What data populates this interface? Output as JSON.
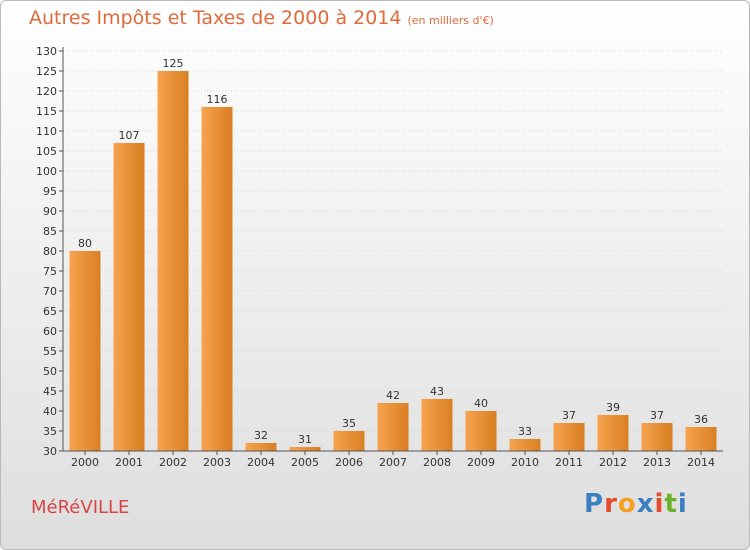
{
  "header": {
    "title": "Autres Impôts et Taxes de 2000 à 2014",
    "subtitle": "(en milliers d'€)"
  },
  "footer": {
    "commune": "MéRéVILLE",
    "brand_letters": [
      "P",
      "r",
      "o",
      "x",
      "i",
      "t",
      "i"
    ]
  },
  "colors": {
    "title": "#e06a3a",
    "commune": "#d94545",
    "bar_light": "#f7a34f",
    "bar_dark": "#d97f22",
    "brand": [
      "#3a7fc2",
      "#e64a2a",
      "#f5a020",
      "#3a7fc2",
      "#e64a2a",
      "#6ab42c",
      "#3a7fc2"
    ]
  },
  "chart_data": {
    "type": "bar",
    "categories": [
      "2000",
      "2001",
      "2002",
      "2003",
      "2004",
      "2005",
      "2006",
      "2007",
      "2008",
      "2009",
      "2010",
      "2011",
      "2012",
      "2013",
      "2014"
    ],
    "values": [
      80,
      107,
      125,
      116,
      32,
      31,
      35,
      42,
      43,
      40,
      33,
      37,
      39,
      37,
      36
    ],
    "title": "Autres Impôts et Taxes de 2000 à 2014",
    "subtitle": "(en milliers d'€)",
    "xlabel": "",
    "ylabel": "",
    "ylim": [
      30,
      130
    ],
    "yticks": [
      30,
      35,
      40,
      45,
      50,
      55,
      60,
      65,
      70,
      75,
      80,
      85,
      90,
      95,
      100,
      105,
      110,
      115,
      120,
      125,
      130
    ],
    "grid": true
  }
}
